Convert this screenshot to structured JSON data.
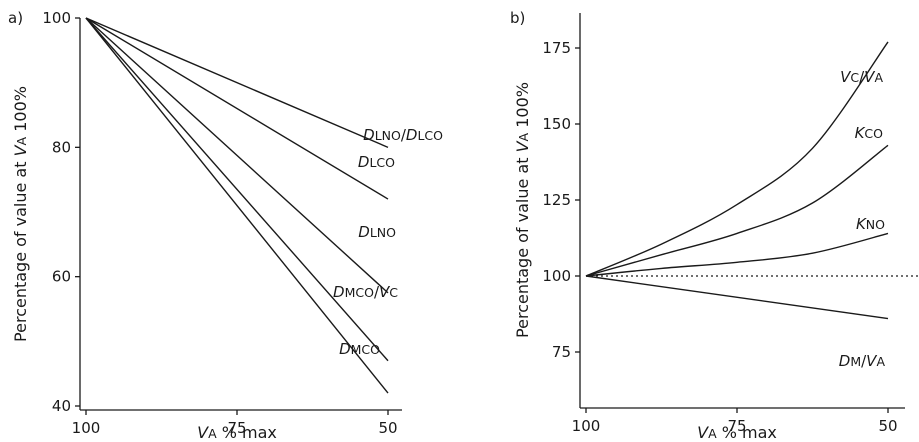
{
  "chart_data": [
    {
      "panel_label": "a)",
      "type": "line",
      "xlabel": {
        "var": "V",
        "sub": "A",
        "rest": " % max"
      },
      "ylabel": {
        "pre": "Percentage of value  at ",
        "var": "V",
        "sub": "A",
        "post": " 100%"
      },
      "xlim": [
        100,
        40
      ],
      "ylim": [
        40,
        100
      ],
      "x_ticks": [
        100,
        75,
        50
      ],
      "y_ticks": [
        40,
        60,
        80,
        100
      ],
      "grid": false,
      "series": [
        {
          "label": [
            {
              "t": "D",
              "s": "i"
            },
            {
              "t": "LNO",
              "s": "sub"
            },
            {
              "t": "/"
            },
            {
              "t": "D",
              "s": "i"
            },
            {
              "t": "LCO",
              "s": "sub"
            }
          ],
          "x": [
            100,
            50
          ],
          "y": [
            100,
            80
          ]
        },
        {
          "label": [
            {
              "t": "D",
              "s": "i"
            },
            {
              "t": "LCO",
              "s": "sub"
            }
          ],
          "x": [
            100,
            50
          ],
          "y": [
            100,
            72
          ]
        },
        {
          "label": [
            {
              "t": "D",
              "s": "i"
            },
            {
              "t": "LNO",
              "s": "sub"
            }
          ],
          "x": [
            100,
            50
          ],
          "y": [
            100,
            57.5
          ]
        },
        {
          "label": [
            {
              "t": "D",
              "s": "i"
            },
            {
              "t": "MCO",
              "s": "sub"
            },
            {
              "t": "/"
            },
            {
              "t": "V",
              "s": "i"
            },
            {
              "t": "C",
              "s": "sub"
            }
          ],
          "x": [
            100,
            50
          ],
          "y": [
            100,
            47
          ]
        },
        {
          "label": [
            {
              "t": "D",
              "s": "i"
            },
            {
              "t": "MCO",
              "s": "sub"
            }
          ],
          "x": [
            100,
            50
          ],
          "y": [
            100,
            42
          ]
        }
      ]
    },
    {
      "panel_label": "b)",
      "type": "line",
      "xlabel": {
        "var": "V",
        "sub": "A",
        "rest": " % max"
      },
      "ylabel": {
        "pre": "Percentage of value  at ",
        "var": "V",
        "sub": "A",
        "post": " 100%"
      },
      "xlim": [
        100,
        40
      ],
      "ylim": [
        65,
        180
      ],
      "x_ticks": [
        100,
        75,
        50
      ],
      "y_ticks": [
        75,
        100,
        125,
        150,
        175
      ],
      "grid": false,
      "reference_line": 100,
      "series": [
        {
          "label": [
            {
              "t": "V",
              "s": "i"
            },
            {
              "t": "C",
              "s": "sub"
            },
            {
              "t": "/"
            },
            {
              "t": "V",
              "s": "i"
            },
            {
              "t": "A",
              "s": "sub"
            }
          ],
          "x": [
            100,
            87.5,
            75,
            62.5,
            50
          ],
          "y": [
            100,
            110.5,
            123.5,
            142,
            177
          ]
        },
        {
          "label": [
            {
              "t": "K",
              "s": "i"
            },
            {
              "t": "CO",
              "s": "sub"
            }
          ],
          "x": [
            100,
            87.5,
            75,
            62.5,
            50
          ],
          "y": [
            100,
            107,
            114,
            124,
            143
          ]
        },
        {
          "label": [
            {
              "t": "K",
              "s": "i"
            },
            {
              "t": "NO",
              "s": "sub"
            }
          ],
          "x": [
            100,
            87.5,
            75,
            62.5,
            50
          ],
          "y": [
            100,
            102.5,
            104.5,
            107.5,
            114
          ]
        },
        {
          "label": [
            {
              "t": "D",
              "s": "i"
            },
            {
              "t": "M",
              "s": "sub"
            },
            {
              "t": "/"
            },
            {
              "t": "V",
              "s": "i"
            },
            {
              "t": "A",
              "s": "sub"
            }
          ],
          "x": [
            100,
            50
          ],
          "y": [
            100,
            86
          ]
        }
      ]
    }
  ]
}
